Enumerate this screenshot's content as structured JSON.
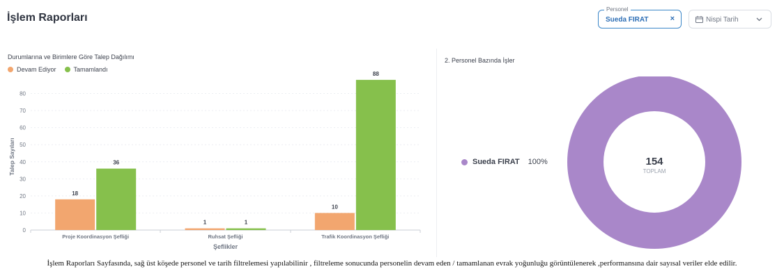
{
  "page": {
    "title": "İşlem Raporları"
  },
  "filters": {
    "personel": {
      "legend": "Personel",
      "value": "Sueda FIRAT",
      "clear": "×"
    },
    "date": {
      "label": "Nispi Tarih"
    }
  },
  "colors": {
    "devam": "#f2a66f",
    "tamam": "#86c04c",
    "donut": "#a987c9",
    "accent": "#2d6eb5"
  },
  "chart_data": [
    {
      "type": "bar",
      "title": "Durumlarına ve Birimlere Göre Talep Dağılımı",
      "categories": [
        "Proje Koordinasyon Şefliği",
        "Ruhsat Şefliği",
        "Trafik Koordinasyon Şefliği"
      ],
      "series": [
        {
          "name": "Devam Ediyor",
          "values": [
            18,
            1,
            10
          ]
        },
        {
          "name": "Tamamlandı",
          "values": [
            36,
            1,
            88
          ]
        }
      ],
      "xlabel": "Şeflikler",
      "ylabel": "Talep Sayıları",
      "ylim": [
        0,
        90
      ],
      "yticks": [
        0,
        10,
        20,
        30,
        40,
        50,
        60,
        70,
        80
      ],
      "legend": "top-left"
    },
    {
      "type": "pie",
      "title": "2. Personel Bazında İşler",
      "labels": [
        "Sueda FIRAT"
      ],
      "values": [
        154
      ],
      "percent_labels": [
        "100%"
      ],
      "center_value": "154",
      "center_label": "TOPLAM"
    }
  ],
  "caption": "İşlem Raporları Sayfasında, sağ üst köşede personel ve tarih filtrelemesi yapılabilinir , filtreleme sonucunda personelin  devam eden / tamamlanan evrak yoğunluğu görüntülenerek ,performansına dair sayısal veriler elde edilir."
}
